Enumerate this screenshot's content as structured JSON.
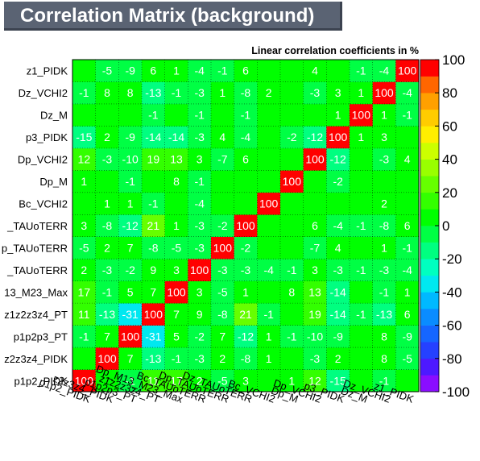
{
  "title": "Correlation Matrix (background)",
  "chart_data": {
    "type": "heatmap",
    "title": "Correlation Matrix (background)",
    "subtitle": "Linear correlation coefficients in %",
    "variables": [
      "p1p2_PIDK",
      "z2z3z4_PIDK",
      "p1p2p3_PT",
      "z1z2z3z4_PT",
      "Dp_M13_M23_Max",
      "Bc_TAUoTERR",
      "Dp_TAUoTERR",
      "Dz_TAUoTERR",
      "Bc_VCHI2",
      "Dp_M",
      "Dp_VCHI2",
      "p3_PIDK",
      "Dz_M",
      "Dz_VCHI2",
      "z1_PIDK"
    ],
    "x_tick_labels": [
      "p1p2_PIDK",
      "z2z3z4_PIDK",
      "p1p2p3_PT",
      "z1z2z3z4_PT",
      "Dp_M13_M23_Max",
      "Bc_TAUoTERR",
      "Dp_TAUoTERR",
      "Dz_TAUoTERR",
      "Bc_VCHI2",
      "Dp_M",
      "Dp_VCHI2",
      "p3_PIDK",
      "Dz_M",
      "Dz_VCHI2",
      "z1_PIDK"
    ],
    "y_tick_labels": [
      "p1p2_PIDK",
      "z2z3z4_PIDK",
      "p1p2p3_PT",
      "z1z2z3z4_PT",
      "13_M23_Max",
      "_TAUoTERR",
      "p_TAUoTERR",
      "_TAUoTERR",
      "Bc_VCHI2",
      "Dp_M",
      "Dp_VCHI2",
      "p3_PIDK",
      "Dz_M",
      "Dz_VCHI2",
      "z1_PIDK"
    ],
    "zlim": [
      -100,
      100
    ],
    "color_ticks": [
      100,
      80,
      60,
      40,
      20,
      0,
      -20,
      -40,
      -60,
      -80,
      -100
    ],
    "values": [
      [
        100,
        0,
        -1,
        11,
        17,
        2,
        -5,
        3,
        0,
        1,
        12,
        -15,
        0,
        -1,
        0
      ],
      [
        0,
        100,
        7,
        -13,
        -1,
        -3,
        2,
        -8,
        1,
        0,
        -3,
        2,
        0,
        8,
        -5
      ],
      [
        -1,
        7,
        100,
        -31,
        5,
        -2,
        7,
        -12,
        1,
        -1,
        -10,
        -9,
        0,
        8,
        -9
      ],
      [
        11,
        -13,
        -31,
        100,
        7,
        9,
        -8,
        21,
        -1,
        0,
        19,
        -14,
        -1,
        -13,
        6
      ],
      [
        17,
        -1,
        5,
        7,
        100,
        3,
        -5,
        1,
        0,
        8,
        13,
        -14,
        0,
        -1,
        1
      ],
      [
        2,
        -3,
        -2,
        9,
        3,
        100,
        -3,
        -3,
        -4,
        -1,
        3,
        -3,
        -1,
        -3,
        -4
      ],
      [
        -5,
        2,
        7,
        -8,
        -5,
        -3,
        100,
        -2,
        0,
        0,
        -7,
        4,
        0,
        1,
        -1
      ],
      [
        3,
        -8,
        -12,
        21,
        1,
        -3,
        -2,
        100,
        0,
        0,
        6,
        -4,
        -1,
        -8,
        6
      ],
      [
        0,
        1,
        1,
        -1,
        0,
        -4,
        0,
        0,
        100,
        0,
        0,
        0,
        0,
        2,
        0
      ],
      [
        1,
        0,
        -1,
        0,
        8,
        -1,
        0,
        0,
        0,
        100,
        0,
        -2,
        0,
        0,
        0
      ],
      [
        12,
        -3,
        -10,
        19,
        13,
        3,
        -7,
        6,
        0,
        0,
        100,
        -12,
        0,
        -3,
        4
      ],
      [
        -15,
        2,
        -9,
        -14,
        -14,
        -3,
        4,
        -4,
        0,
        -2,
        -12,
        100,
        1,
        3,
        0
      ],
      [
        0,
        0,
        0,
        -1,
        0,
        -1,
        0,
        -1,
        0,
        0,
        0,
        1,
        100,
        1,
        -1
      ],
      [
        -1,
        8,
        8,
        -13,
        -1,
        -3,
        1,
        -8,
        2,
        0,
        -3,
        3,
        1,
        100,
        -4
      ],
      [
        0,
        -5,
        -9,
        6,
        1,
        -4,
        -1,
        6,
        0,
        0,
        4,
        0,
        -1,
        -4,
        100
      ]
    ]
  }
}
